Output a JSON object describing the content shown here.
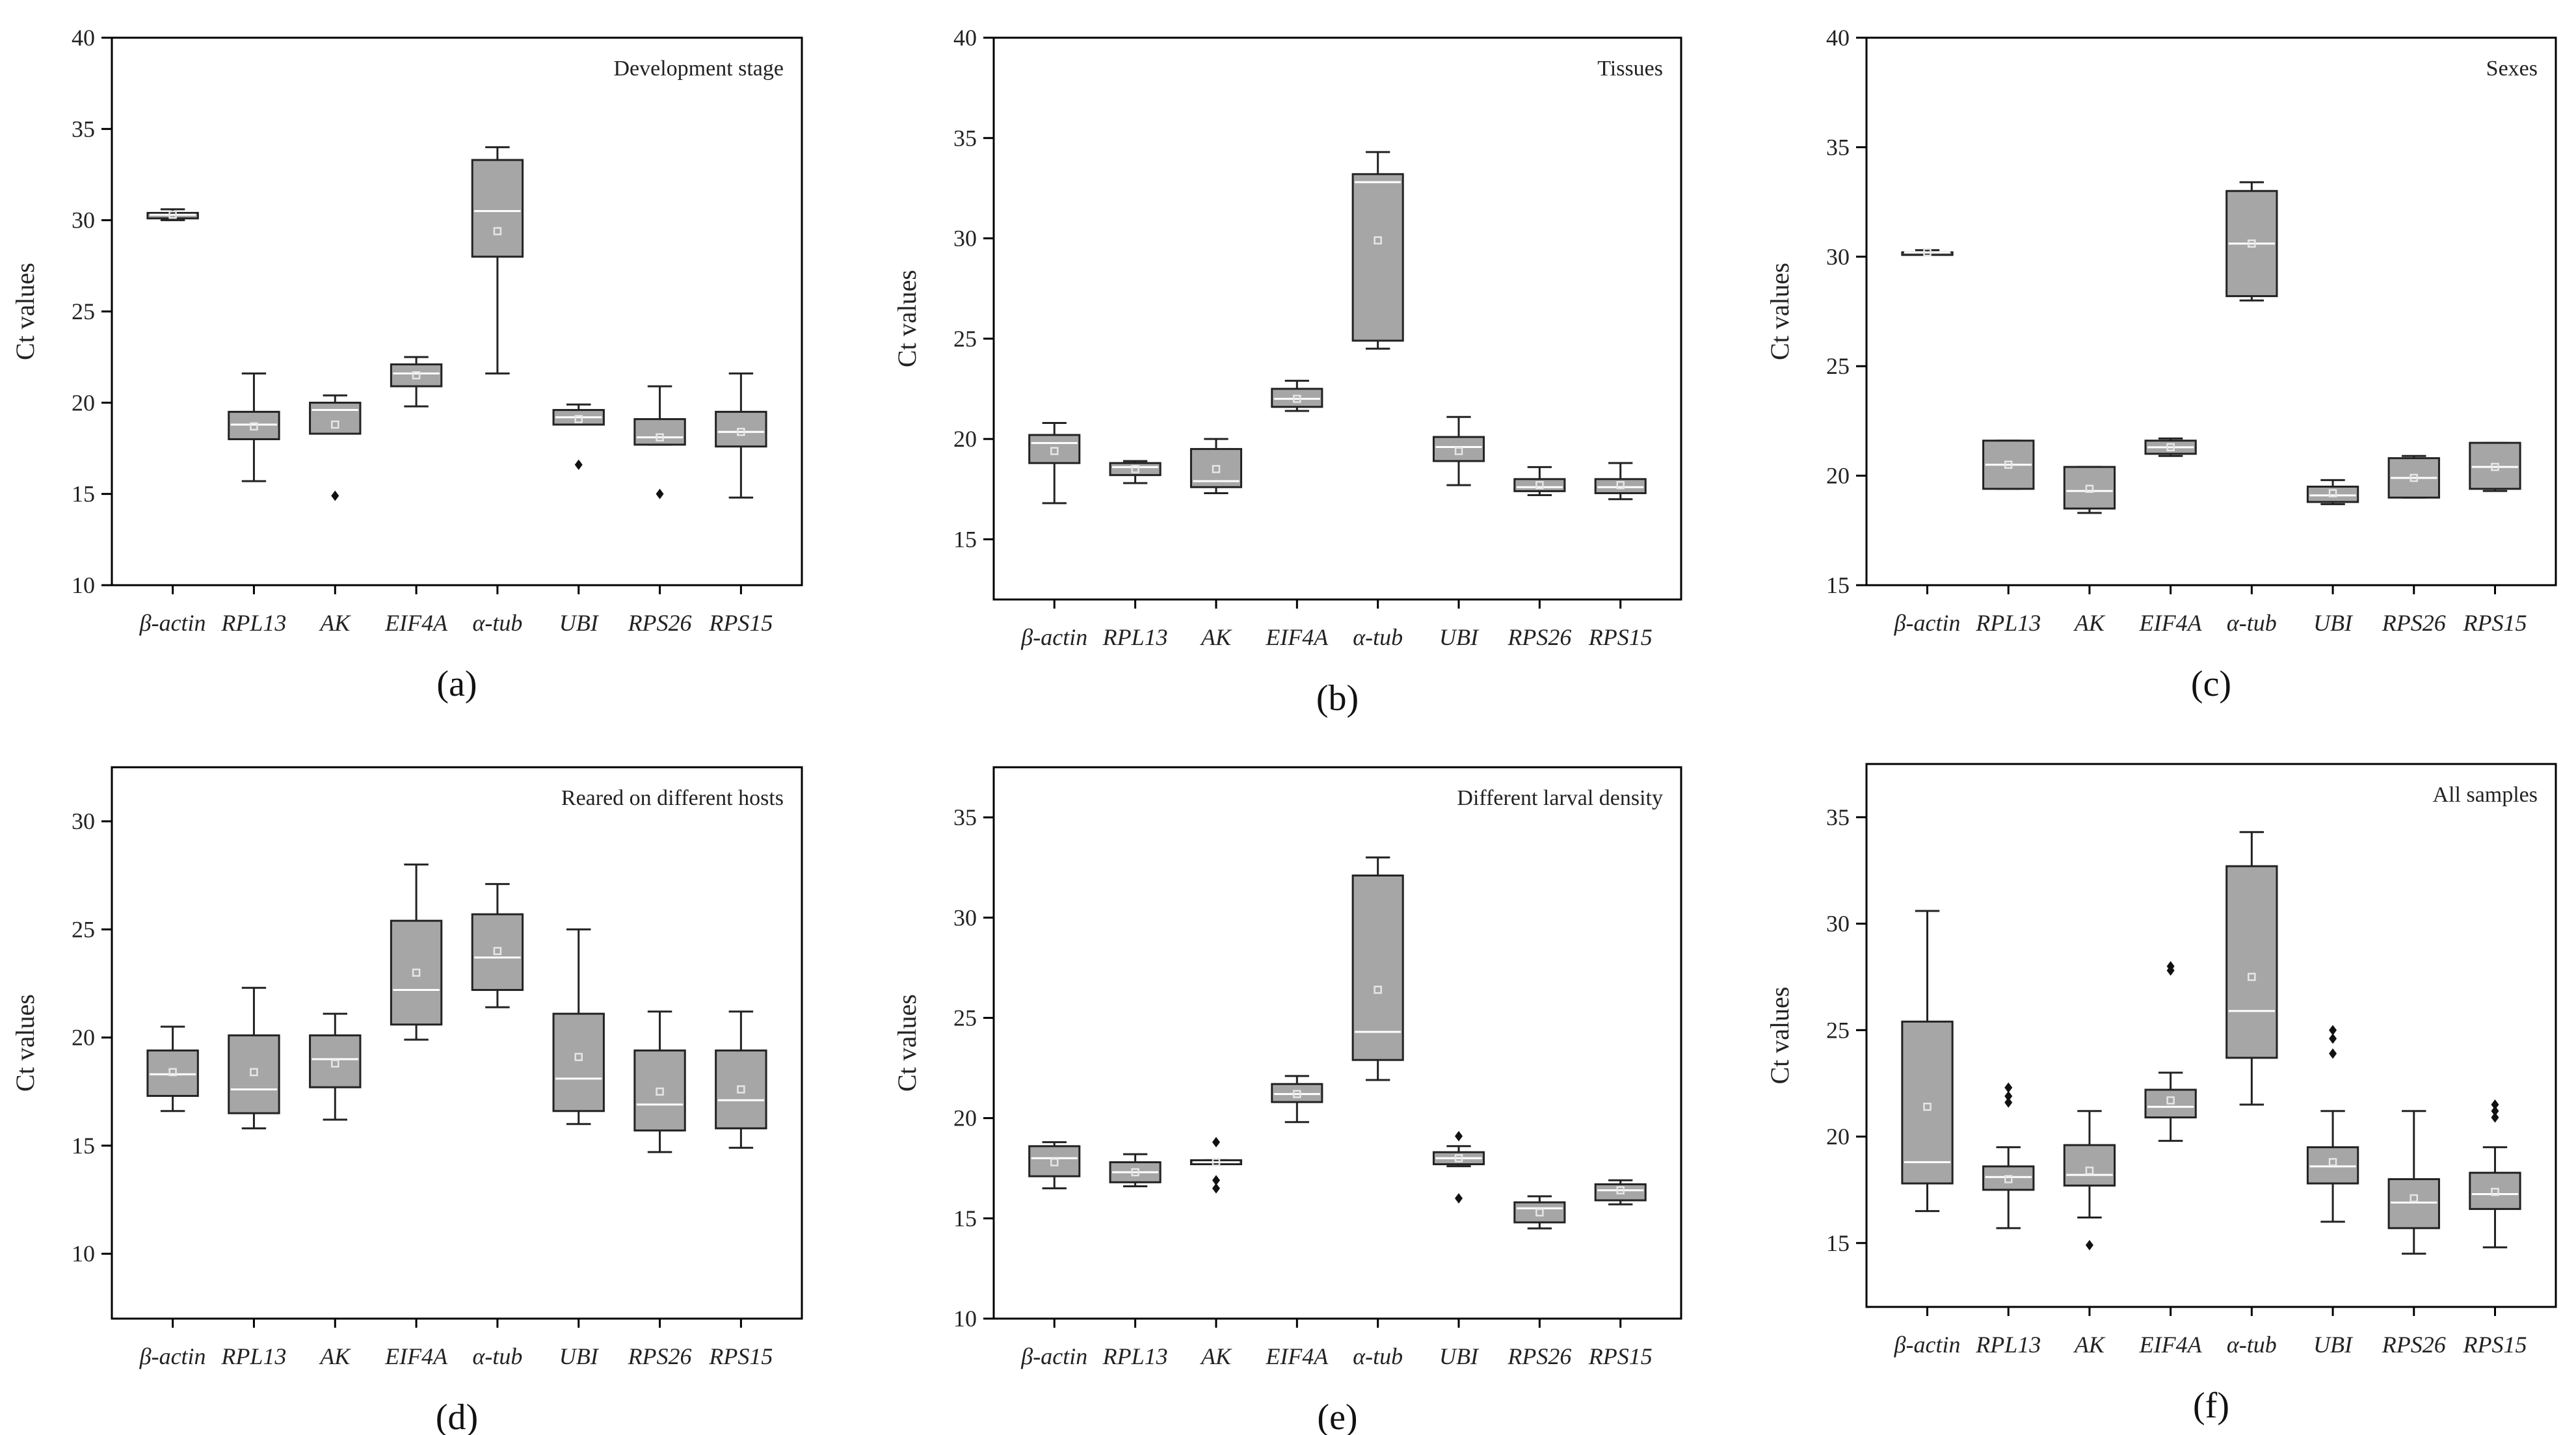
{
  "chart_data": [
    {
      "panel": "(a)",
      "type": "box",
      "title": "Development stage",
      "ylabel": "Ct values",
      "xlabel": "",
      "ylim": [
        10,
        40
      ],
      "yticks": [
        10,
        15,
        20,
        25,
        30,
        35,
        40
      ],
      "categories": [
        "β-actin",
        "RPL13",
        "AK",
        "EIF4A",
        "α-tub",
        "UBI",
        "RPS26",
        "RPS15"
      ],
      "boxes": [
        {
          "min": 30.0,
          "q1": 30.1,
          "median": 30.3,
          "q3": 30.4,
          "max": 30.6,
          "mean": 30.3,
          "outliers": []
        },
        {
          "min": 15.7,
          "q1": 18.0,
          "median": 18.8,
          "q3": 19.5,
          "max": 21.6,
          "mean": 18.7,
          "outliers": []
        },
        {
          "min": 18.3,
          "q1": 18.3,
          "median": 19.6,
          "q3": 20.0,
          "max": 20.4,
          "mean": 18.8,
          "outliers": [
            14.9
          ]
        },
        {
          "min": 19.8,
          "q1": 20.9,
          "median": 21.6,
          "q3": 22.1,
          "max": 22.5,
          "mean": 21.5,
          "outliers": []
        },
        {
          "min": 21.6,
          "q1": 28.0,
          "median": 30.5,
          "q3": 33.3,
          "max": 34.0,
          "mean": 29.4,
          "outliers": []
        },
        {
          "min": 18.8,
          "q1": 18.8,
          "median": 19.2,
          "q3": 19.6,
          "max": 19.9,
          "mean": 19.1,
          "outliers": [
            16.6
          ]
        },
        {
          "min": 17.7,
          "q1": 17.7,
          "median": 18.1,
          "q3": 19.1,
          "max": 20.9,
          "mean": 18.1,
          "outliers": [
            15.0
          ]
        },
        {
          "min": 14.8,
          "q1": 17.6,
          "median": 18.4,
          "q3": 19.5,
          "max": 21.6,
          "mean": 18.4,
          "outliers": []
        }
      ]
    },
    {
      "panel": "(b)",
      "type": "box",
      "title": "Tissues",
      "ylabel": "Ct values",
      "xlabel": "",
      "ylim": [
        12,
        40
      ],
      "yticks": [
        15,
        20,
        25,
        30,
        35,
        40
      ],
      "categories": [
        "β-actin",
        "RPL13",
        "AK",
        "EIF4A",
        "α-tub",
        "UBI",
        "RPS26",
        "RPS15"
      ],
      "boxes": [
        {
          "min": 16.8,
          "q1": 18.8,
          "median": 19.8,
          "q3": 20.2,
          "max": 20.8,
          "mean": 19.4,
          "outliers": []
        },
        {
          "min": 17.8,
          "q1": 18.2,
          "median": 18.6,
          "q3": 18.8,
          "max": 18.9,
          "mean": 18.5,
          "outliers": []
        },
        {
          "min": 17.3,
          "q1": 17.6,
          "median": 17.9,
          "q3": 19.5,
          "max": 20.0,
          "mean": 18.5,
          "outliers": []
        },
        {
          "min": 21.4,
          "q1": 21.6,
          "median": 22.0,
          "q3": 22.5,
          "max": 22.9,
          "mean": 22.0,
          "outliers": []
        },
        {
          "min": 24.5,
          "q1": 24.9,
          "median": 32.8,
          "q3": 33.2,
          "max": 34.3,
          "mean": 29.9,
          "outliers": []
        },
        {
          "min": 17.7,
          "q1": 18.9,
          "median": 19.6,
          "q3": 20.1,
          "max": 21.1,
          "mean": 19.4,
          "outliers": []
        },
        {
          "min": 17.2,
          "q1": 17.4,
          "median": 17.6,
          "q3": 18.0,
          "max": 18.6,
          "mean": 17.7,
          "outliers": []
        },
        {
          "min": 17.0,
          "q1": 17.3,
          "median": 17.6,
          "q3": 18.0,
          "max": 18.8,
          "mean": 17.7,
          "outliers": []
        }
      ]
    },
    {
      "panel": "(c)",
      "type": "box",
      "title": "Sexes",
      "ylabel": "Ct values",
      "xlabel": "",
      "ylim": [
        15,
        40
      ],
      "yticks": [
        15,
        20,
        25,
        30,
        35,
        40
      ],
      "categories": [
        "β-actin",
        "RPL13",
        "AK",
        "EIF4A",
        "α-tub",
        "UBI",
        "RPS26",
        "RPS15"
      ],
      "boxes": [
        {
          "min": 30.1,
          "q1": 30.2,
          "median": 30.2,
          "q3": 30.2,
          "max": 30.3,
          "mean": 30.2,
          "outliers": []
        },
        {
          "min": 19.4,
          "q1": 19.4,
          "median": 20.5,
          "q3": 21.6,
          "max": 21.6,
          "mean": 20.5,
          "outliers": []
        },
        {
          "min": 18.3,
          "q1": 18.5,
          "median": 19.3,
          "q3": 20.4,
          "max": 20.4,
          "mean": 19.4,
          "outliers": []
        },
        {
          "min": 20.9,
          "q1": 21.0,
          "median": 21.3,
          "q3": 21.6,
          "max": 21.7,
          "mean": 21.3,
          "outliers": []
        },
        {
          "min": 28.0,
          "q1": 28.2,
          "median": 30.6,
          "q3": 33.0,
          "max": 33.4,
          "mean": 30.6,
          "outliers": []
        },
        {
          "min": 18.7,
          "q1": 18.8,
          "median": 19.1,
          "q3": 19.5,
          "max": 19.8,
          "mean": 19.2,
          "outliers": []
        },
        {
          "min": 19.0,
          "q1": 19.0,
          "median": 19.9,
          "q3": 20.8,
          "max": 20.9,
          "mean": 19.9,
          "outliers": []
        },
        {
          "min": 19.3,
          "q1": 19.4,
          "median": 20.4,
          "q3": 21.5,
          "max": 21.5,
          "mean": 20.4,
          "outliers": []
        }
      ]
    },
    {
      "panel": "(d)",
      "type": "box",
      "title": "Reared on different hosts",
      "ylabel": "Ct values",
      "xlabel": "",
      "ylim": [
        7,
        32.5
      ],
      "yticks": [
        10,
        15,
        20,
        25,
        30
      ],
      "categories": [
        "β-actin",
        "RPL13",
        "AK",
        "EIF4A",
        "α-tub",
        "UBI",
        "RPS26",
        "RPS15"
      ],
      "boxes": [
        {
          "min": 16.6,
          "q1": 17.3,
          "median": 18.3,
          "q3": 19.4,
          "max": 20.5,
          "mean": 18.4,
          "outliers": []
        },
        {
          "min": 15.8,
          "q1": 16.5,
          "median": 17.6,
          "q3": 20.1,
          "max": 22.3,
          "mean": 18.4,
          "outliers": []
        },
        {
          "min": 16.2,
          "q1": 17.7,
          "median": 19.0,
          "q3": 20.1,
          "max": 21.1,
          "mean": 18.8,
          "outliers": []
        },
        {
          "min": 19.9,
          "q1": 20.6,
          "median": 22.2,
          "q3": 25.4,
          "max": 28.0,
          "mean": 23.0,
          "outliers": []
        },
        {
          "min": 21.4,
          "q1": 22.2,
          "median": 23.7,
          "q3": 25.7,
          "max": 27.1,
          "mean": 24.0,
          "outliers": []
        },
        {
          "min": 16.0,
          "q1": 16.6,
          "median": 18.1,
          "q3": 21.1,
          "max": 25.0,
          "mean": 19.1,
          "outliers": []
        },
        {
          "min": 14.7,
          "q1": 15.7,
          "median": 16.9,
          "q3": 19.4,
          "max": 21.2,
          "mean": 17.5,
          "outliers": []
        },
        {
          "min": 14.9,
          "q1": 15.8,
          "median": 17.1,
          "q3": 19.4,
          "max": 21.2,
          "mean": 17.6,
          "outliers": []
        }
      ]
    },
    {
      "panel": "(e)",
      "type": "box",
      "title": "Different larval density",
      "ylabel": "Ct values",
      "xlabel": "",
      "ylim": [
        10,
        37.5
      ],
      "yticks": [
        10,
        15,
        20,
        25,
        30,
        35
      ],
      "categories": [
        "β-actin",
        "RPL13",
        "AK",
        "EIF4A",
        "α-tub",
        "UBI",
        "RPS26",
        "RPS15"
      ],
      "boxes": [
        {
          "min": 16.5,
          "q1": 17.1,
          "median": 18.0,
          "q3": 18.6,
          "max": 18.8,
          "mean": 17.8,
          "outliers": []
        },
        {
          "min": 16.6,
          "q1": 16.8,
          "median": 17.3,
          "q3": 17.8,
          "max": 18.2,
          "mean": 17.3,
          "outliers": []
        },
        {
          "min": 17.7,
          "q1": 17.7,
          "median": 17.8,
          "q3": 17.9,
          "max": 17.9,
          "mean": 17.8,
          "outliers": [
            18.8,
            16.9,
            16.5
          ]
        },
        {
          "min": 19.8,
          "q1": 20.8,
          "median": 21.2,
          "q3": 21.7,
          "max": 22.1,
          "mean": 21.2,
          "outliers": []
        },
        {
          "min": 21.9,
          "q1": 22.9,
          "median": 24.3,
          "q3": 32.1,
          "max": 33.0,
          "mean": 26.4,
          "outliers": []
        },
        {
          "min": 17.6,
          "q1": 17.7,
          "median": 18.0,
          "q3": 18.3,
          "max": 18.6,
          "mean": 18.0,
          "outliers": [
            19.1,
            16.0
          ]
        },
        {
          "min": 14.5,
          "q1": 14.8,
          "median": 15.5,
          "q3": 15.8,
          "max": 16.1,
          "mean": 15.3,
          "outliers": []
        },
        {
          "min": 15.7,
          "q1": 15.9,
          "median": 16.4,
          "q3": 16.7,
          "max": 16.9,
          "mean": 16.4,
          "outliers": []
        }
      ]
    },
    {
      "panel": "(f)",
      "type": "box",
      "title": "All samples",
      "ylabel": "Ct values",
      "xlabel": "",
      "ylim": [
        12,
        37.5
      ],
      "yticks": [
        15,
        20,
        25,
        30,
        35
      ],
      "categories": [
        "β-actin",
        "RPL13",
        "AK",
        "EIF4A",
        "α-tub",
        "UBI",
        "RPS26",
        "RPS15"
      ],
      "boxes": [
        {
          "min": 16.5,
          "q1": 17.8,
          "median": 18.8,
          "q3": 25.4,
          "max": 30.6,
          "mean": 21.4,
          "outliers": []
        },
        {
          "min": 15.7,
          "q1": 17.5,
          "median": 18.1,
          "q3": 18.6,
          "max": 19.5,
          "mean": 18.0,
          "outliers": [
            22.3,
            21.9,
            21.6
          ]
        },
        {
          "min": 16.2,
          "q1": 17.7,
          "median": 18.2,
          "q3": 19.6,
          "max": 21.2,
          "mean": 18.4,
          "outliers": [
            14.9
          ]
        },
        {
          "min": 19.8,
          "q1": 20.9,
          "median": 21.4,
          "q3": 22.2,
          "max": 23.0,
          "mean": 21.7,
          "outliers": [
            28.0,
            27.8
          ]
        },
        {
          "min": 21.5,
          "q1": 23.7,
          "median": 25.9,
          "q3": 32.7,
          "max": 34.3,
          "mean": 27.5,
          "outliers": []
        },
        {
          "min": 16.0,
          "q1": 17.8,
          "median": 18.6,
          "q3": 19.5,
          "max": 21.2,
          "mean": 18.8,
          "outliers": [
            25.0,
            24.6,
            23.9
          ]
        },
        {
          "min": 14.5,
          "q1": 15.7,
          "median": 16.9,
          "q3": 18.0,
          "max": 21.2,
          "mean": 17.1,
          "outliers": []
        },
        {
          "min": 14.8,
          "q1": 16.6,
          "median": 17.3,
          "q3": 18.3,
          "max": 19.5,
          "mean": 17.4,
          "outliers": [
            21.5,
            21.2,
            20.9
          ]
        }
      ]
    }
  ]
}
